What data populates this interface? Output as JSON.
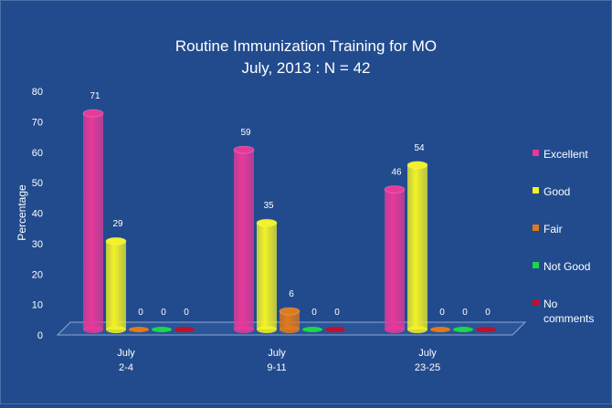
{
  "chart_data": {
    "type": "bar",
    "title_line1": "Routine Immunization Training for MO",
    "title_line2": "July, 2013 : N = 42",
    "ylabel": "Percentage",
    "xlabel": "",
    "ylim": [
      0,
      80
    ],
    "yticks": [
      0,
      10,
      20,
      30,
      40,
      50,
      60,
      70,
      80
    ],
    "categories": [
      {
        "line1": "July",
        "line2": "2-4"
      },
      {
        "line1": "July",
        "line2": "9-11"
      },
      {
        "line1": "July",
        "line2": "23-25"
      }
    ],
    "series": [
      {
        "name": "Excellent",
        "color": "#e8399a",
        "values": [
          71,
          59,
          46
        ]
      },
      {
        "name": "Good",
        "color": "#f2f226",
        "values": [
          29,
          35,
          54
        ]
      },
      {
        "name": "Fair",
        "color": "#e07a1a",
        "values": [
          0,
          6,
          0
        ]
      },
      {
        "name": "Not Good",
        "color": "#1ed64a",
        "values": [
          0,
          0,
          0
        ]
      },
      {
        "name": "No comments",
        "color": "#c0102a",
        "values": [
          0,
          0,
          0
        ]
      }
    ],
    "legend_position": "right",
    "grid": false
  }
}
